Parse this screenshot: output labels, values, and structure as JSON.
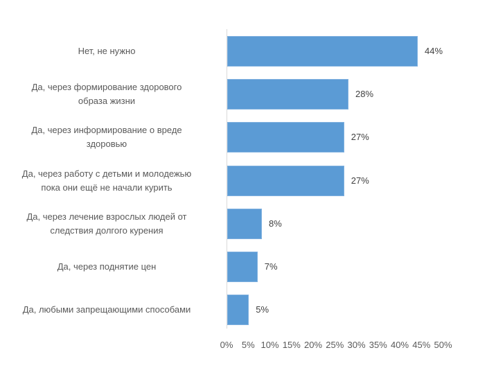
{
  "chart_data": {
    "type": "bar",
    "orientation": "horizontal",
    "title": "",
    "xlabel": "",
    "ylabel": "",
    "categories": [
      "Нет, не нужно",
      "Да, через формирование здорового образа жизни",
      "Да, через информирование о вреде здоровью",
      "Да, через работу с детьми и молодежью пока они ещё не начали курить",
      "Да, через лечение взрослых людей от следствия долгого курения",
      "Да, через поднятие цен",
      "Да, любыми запрещающими способами"
    ],
    "values": [
      44,
      28,
      27,
      27,
      8,
      7,
      5
    ],
    "value_labels": [
      "44%",
      "28%",
      "27%",
      "27%",
      "8%",
      "7%",
      "5%"
    ],
    "xlim": [
      0,
      50
    ],
    "x_ticks": [
      "0%",
      "5%",
      "10%",
      "15%",
      "20%",
      "25%",
      "30%",
      "35%",
      "40%",
      "45%",
      "50%"
    ],
    "grid": false,
    "legend": "none",
    "bar_color": "#5b9bd5"
  },
  "labels": [
    {
      "lines": [
        "Нет, не нужно"
      ]
    },
    {
      "lines": [
        "Да, через формирование здорового",
        "образа жизни"
      ]
    },
    {
      "lines": [
        "Да, через информирование о вреде",
        "здоровью"
      ]
    },
    {
      "lines": [
        "Да, через работу с детьми и молодежью",
        "пока они ещё не начали курить"
      ]
    },
    {
      "lines": [
        "Да, через лечение взрослых людей от",
        "следствия долгого курения"
      ]
    },
    {
      "lines": [
        "Да, через поднятие цен"
      ]
    },
    {
      "lines": [
        "Да, любыми запрещающими способами"
      ]
    }
  ]
}
